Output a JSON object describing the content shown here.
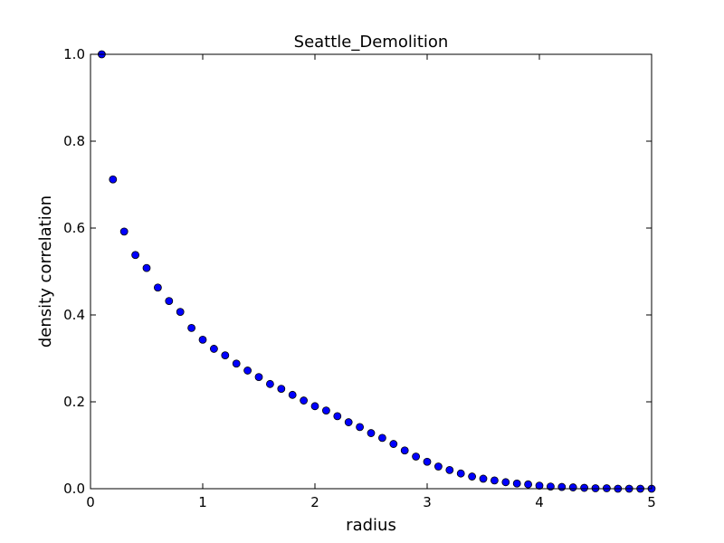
{
  "chart_data": {
    "type": "scatter",
    "title": "Seattle_Demolition",
    "xlabel": "radius",
    "ylabel": "density correlation",
    "xlim": [
      0,
      5
    ],
    "ylim": [
      0.0,
      1.0
    ],
    "grid": false,
    "x_ticks": [
      "0",
      "1",
      "2",
      "3",
      "4",
      "5"
    ],
    "y_ticks": [
      "0.0",
      "0.2",
      "0.4",
      "0.6",
      "0.8",
      "1.0"
    ],
    "marker_color": "#0000ff",
    "marker_edge_color": "#000000",
    "x": [
      0.1,
      0.2,
      0.3,
      0.4,
      0.5,
      0.6,
      0.7,
      0.8,
      0.9,
      1.0,
      1.1,
      1.2,
      1.3,
      1.4,
      1.5,
      1.6,
      1.7,
      1.8,
      1.9,
      2.0,
      2.1,
      2.2,
      2.3,
      2.4,
      2.5,
      2.6,
      2.7,
      2.8,
      2.9,
      3.0,
      3.1,
      3.2,
      3.3,
      3.4,
      3.5,
      3.6,
      3.7,
      3.8,
      3.9,
      4.0,
      4.1,
      4.2,
      4.3,
      4.4,
      4.5,
      4.6,
      4.7,
      4.8,
      4.9,
      5.0
    ],
    "y": [
      1.0,
      0.712,
      0.592,
      0.538,
      0.508,
      0.463,
      0.432,
      0.407,
      0.37,
      0.343,
      0.322,
      0.307,
      0.288,
      0.272,
      0.257,
      0.241,
      0.23,
      0.216,
      0.203,
      0.19,
      0.18,
      0.167,
      0.153,
      0.142,
      0.128,
      0.117,
      0.103,
      0.088,
      0.074,
      0.062,
      0.051,
      0.043,
      0.035,
      0.028,
      0.023,
      0.019,
      0.015,
      0.012,
      0.01,
      0.007,
      0.005,
      0.004,
      0.003,
      0.002,
      0.001,
      0.001,
      0.0,
      0.0,
      0.0,
      0.0
    ]
  }
}
